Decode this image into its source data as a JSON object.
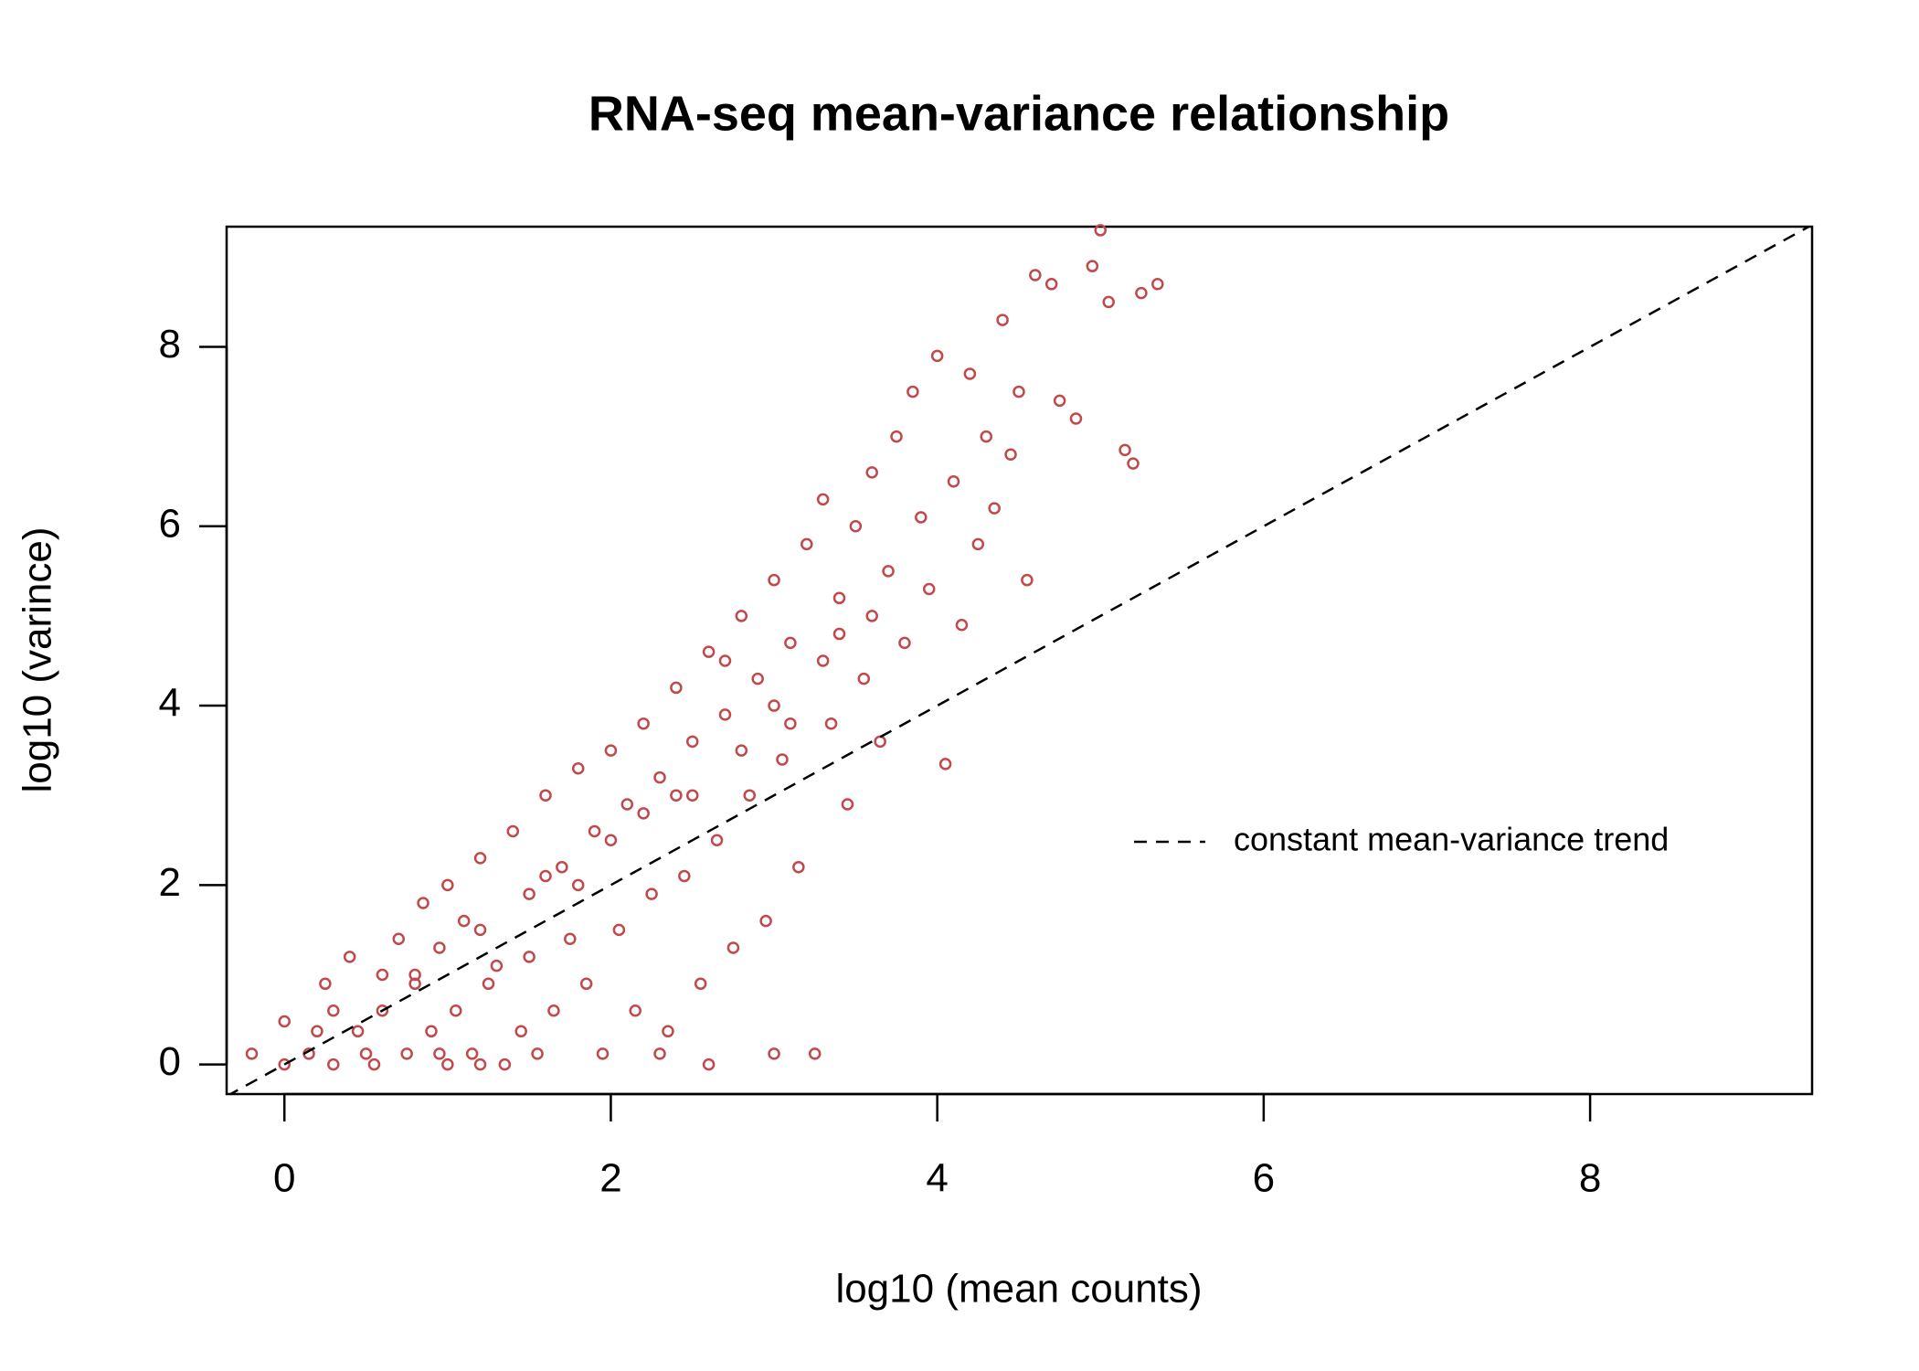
{
  "chart_data": {
    "type": "scatter",
    "title": "RNA-seq mean-variance relationship",
    "x_label": "log10 (mean counts)",
    "y_label": "log10 (varince)",
    "xlim": [
      -0.354,
      9.36
    ],
    "ylim": [
      -0.33,
      9.34
    ],
    "xticks": [
      0,
      2,
      4,
      6,
      8
    ],
    "yticks": [
      0,
      2,
      4,
      6,
      8
    ],
    "grid": false,
    "series": [
      {
        "color": "#c1484b",
        "x": [
          -0.2,
          0,
          0,
          0.15,
          0.2,
          0.25,
          0.3,
          0.3,
          0.4,
          0.45,
          0.5,
          0.55,
          0.6,
          0.6,
          0.7,
          0.75,
          0.8,
          0.85,
          0.9,
          0.95,
          1.0,
          1.0,
          1.05,
          1.1,
          1.15,
          1.2,
          1.25,
          1.3,
          1.35,
          1.4,
          1.45,
          1.5,
          1.55,
          1.6,
          1.65,
          1.7,
          1.75,
          1.8,
          1.85,
          1.9,
          1.95,
          2.0,
          2.05,
          2.1,
          2.15,
          2.2,
          2.25,
          2.3,
          2.35,
          2.4,
          2.45,
          2.5,
          2.55,
          2.6,
          2.65,
          2.7,
          2.75,
          2.8,
          2.85,
          2.9,
          2.95,
          3.0,
          3.05,
          3.1,
          3.15,
          3.2,
          3.25,
          3.3,
          3.35,
          3.4,
          3.45,
          3.5,
          3.55,
          3.6,
          3.65,
          3.7,
          3.75,
          3.8,
          3.85,
          3.9,
          3.95,
          4.0,
          4.05,
          4.1,
          4.15,
          4.2,
          4.25,
          4.3,
          4.35,
          4.4,
          4.45,
          4.5,
          4.55,
          4.6,
          4.7,
          4.75,
          4.85,
          4.95,
          5.0,
          5.05,
          5.15,
          5.2,
          5.25,
          5.35,
          3.0,
          2.6,
          2.3,
          1.2,
          0.95,
          1.5,
          2.0,
          2.5,
          3.0,
          3.3,
          2.8,
          1.8,
          1.2,
          0.8,
          3.6,
          2.2,
          2.7,
          3.1,
          1.6,
          2.4,
          3.4
        ],
        "y": [
          0.12,
          0,
          0.48,
          0.12,
          0.37,
          0.9,
          0.6,
          0,
          1.2,
          0.37,
          0.12,
          0,
          1.0,
          0.6,
          1.4,
          0.12,
          0.9,
          1.8,
          0.37,
          1.3,
          0,
          2.0,
          0.6,
          1.6,
          0.12,
          2.3,
          0.9,
          1.1,
          0,
          2.6,
          0.37,
          1.9,
          0.12,
          3.0,
          0.6,
          2.2,
          1.4,
          3.3,
          0.9,
          2.6,
          0.12,
          3.5,
          1.5,
          2.9,
          0.6,
          3.8,
          1.9,
          3.2,
          0.37,
          4.2,
          2.1,
          3.6,
          0.9,
          4.6,
          2.5,
          3.9,
          1.3,
          5.0,
          3.0,
          4.3,
          1.6,
          5.4,
          3.4,
          4.7,
          2.2,
          5.8,
          0.12,
          6.3,
          3.8,
          5.2,
          2.9,
          6.0,
          4.3,
          6.6,
          3.6,
          5.5,
          7.0,
          4.7,
          7.5,
          6.1,
          5.3,
          7.9,
          3.35,
          6.5,
          4.9,
          7.7,
          5.8,
          7.0,
          6.2,
          8.3,
          6.8,
          7.5,
          5.4,
          8.8,
          8.7,
          7.4,
          7.2,
          8.9,
          9.3,
          8.5,
          6.85,
          6.7,
          8.6,
          8.7,
          0.12,
          0,
          0.12,
          0,
          0.12,
          1.2,
          2.5,
          3.0,
          4.0,
          4.5,
          3.5,
          2.0,
          1.5,
          1.0,
          5.0,
          2.8,
          4.5,
          3.8,
          2.1,
          3.0,
          4.8
        ]
      }
    ],
    "trend_line": {
      "name": "constant mean-variance trend",
      "intercept": 0,
      "slope": 1,
      "color": "#000000",
      "dashed": true
    }
  }
}
